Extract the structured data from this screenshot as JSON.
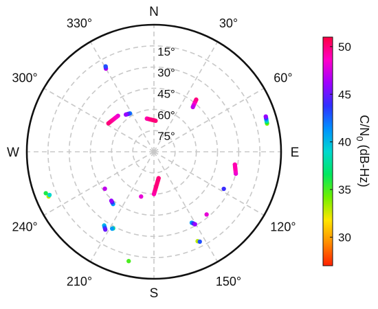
{
  "chart_data": {
    "type": "scatter",
    "title": "",
    "projection": "polar-skyplot",
    "angular_axis": "azimuth (deg), 0 at top (N), clockwise",
    "radial_axis": "elevation (deg), 90 at center, 0 at rim",
    "grid": true,
    "compass": {
      "N": "N",
      "E": "E",
      "S": "S",
      "W": "W"
    },
    "azimuth_ticks": [
      {
        "value": 30,
        "label": "30°"
      },
      {
        "value": 60,
        "label": "60°"
      },
      {
        "value": 120,
        "label": "120°"
      },
      {
        "value": 150,
        "label": "150°"
      },
      {
        "value": 210,
        "label": "210°"
      },
      {
        "value": 240,
        "label": "240°"
      },
      {
        "value": 300,
        "label": "300°"
      },
      {
        "value": 330,
        "label": "330°"
      }
    ],
    "elevation_rings": [
      15,
      30,
      45,
      60,
      75
    ],
    "elevation_labels": [
      {
        "value": 15,
        "label": "15°"
      },
      {
        "value": 30,
        "label": "30°"
      },
      {
        "value": 45,
        "label": "45°"
      },
      {
        "value": 60,
        "label": "60°"
      },
      {
        "value": 75,
        "label": "75°"
      }
    ],
    "colorbar": {
      "label_main": "C/N",
      "label_sub": "0",
      "label_rest": " (dB-Hz)",
      "range": [
        27,
        51
      ],
      "ticks": [
        {
          "value": 30,
          "label": "30"
        },
        {
          "value": 35,
          "label": "35"
        },
        {
          "value": 40,
          "label": "40"
        },
        {
          "value": 45,
          "label": "45"
        },
        {
          "value": 50,
          "label": "50"
        }
      ],
      "colors": [
        "#ff2000",
        "#ff8c00",
        "#ffe600",
        "#70f000",
        "#00e860",
        "#00d8d0",
        "#0090ff",
        "#3030ff",
        "#a000ff",
        "#ff00c8",
        "#ff0040"
      ]
    },
    "series": [
      {
        "az0": 330.0,
        "el0": 22.0,
        "az1": 330.5,
        "el1": 20.5,
        "cn0": [
          47,
          45,
          43
        ]
      },
      {
        "az0": 39.0,
        "el0": 42.5,
        "az1": 41.0,
        "el1": 48.0,
        "cn0": [
          50,
          49,
          47
        ]
      },
      {
        "az0": 348.0,
        "el0": 66.0,
        "az1": 3.0,
        "el1": 68.0,
        "cn0": [
          49,
          50,
          50
        ]
      },
      {
        "az0": 315.0,
        "el0": 54.0,
        "az1": 302.0,
        "el1": 52.0,
        "cn0": [
          48,
          49,
          50
        ]
      },
      {
        "az0": 328.0,
        "el0": 58.0,
        "az1": 323.0,
        "el1": 57.0,
        "cn0": [
          42,
          44,
          46
        ]
      },
      {
        "az0": 76.0,
        "el0": 7.5,
        "az1": 72.5,
        "el1": 7.0,
        "cn0": [
          34,
          38,
          42,
          46
        ]
      },
      {
        "az0": 105.0,
        "el0": 30.0,
        "az1": 99.0,
        "el1": 32.0,
        "cn0": [
          48,
          49,
          49
        ]
      },
      {
        "az0": 118.0,
        "el0": 34.0,
        "az1": 118.0,
        "el1": 34.0,
        "cn0": [
          44
        ]
      },
      {
        "az0": 140.0,
        "el0": 32.0,
        "az1": 140.0,
        "el1": 32.0,
        "cn0": [
          48
        ]
      },
      {
        "az0": 180.0,
        "el0": 60.0,
        "az1": 170.0,
        "el1": 71.0,
        "cn0": [
          49,
          50,
          50
        ]
      },
      {
        "az0": 196.0,
        "el0": 57.0,
        "az1": 196.0,
        "el1": 57.0,
        "cn0": [
          48
        ]
      },
      {
        "az0": 218.0,
        "el0": 43.0,
        "az1": 221.0,
        "el1": 44.0,
        "cn0": [
          41,
          44,
          46
        ]
      },
      {
        "az0": 233.0,
        "el0": 46.5,
        "az1": 233.0,
        "el1": 46.5,
        "cn0": [
          47
        ]
      },
      {
        "az0": 247.0,
        "el0": 9.0,
        "az1": 247.5,
        "el1": 10.0,
        "cn0": [
          33,
          36,
          39
        ]
      },
      {
        "az0": 249.0,
        "el0": 8.0,
        "az1": 249.0,
        "el1": 8.0,
        "cn0": [
          36
        ]
      },
      {
        "az0": 214.0,
        "el0": 27.0,
        "az1": 212.0,
        "el1": 25.0,
        "cn0": [
          40,
          42,
          45
        ]
      },
      {
        "az0": 208.0,
        "el0": 28.5,
        "az1": 208.5,
        "el1": 28.0,
        "cn0": [
          38,
          41
        ]
      },
      {
        "az0": 193.0,
        "el0": 10.5,
        "az1": 193.0,
        "el1": 10.5,
        "cn0": [
          35,
          37
        ]
      },
      {
        "az0": 152.0,
        "el0": 33.0,
        "az1": 150.5,
        "el1": 31.0,
        "cn0": [
          41,
          44,
          46
        ]
      },
      {
        "az0": 154.0,
        "el0": 19.5,
        "az1": 153.0,
        "el1": 18.5,
        "cn0": [
          33,
          38,
          43
        ]
      }
    ]
  }
}
